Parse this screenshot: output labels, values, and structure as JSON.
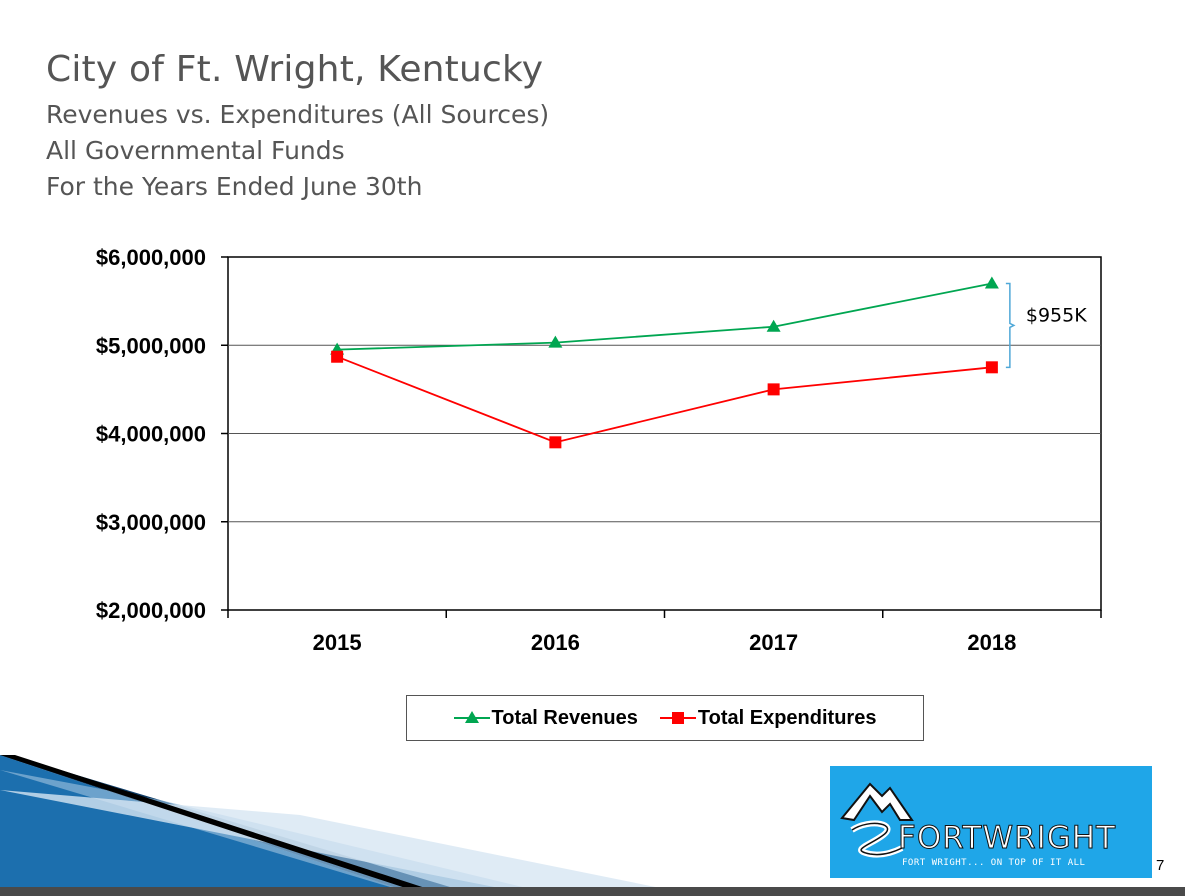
{
  "slide": {
    "title": "City of Ft. Wright, Kentucky",
    "subtitle_lines": [
      "Revenues  vs. Expenditures (All Sources)",
      "All Governmental Funds",
      "For the Years Ended June 30th"
    ],
    "page_number": "7"
  },
  "logo": {
    "name": "FORTWRIGHT",
    "tagline": "FORT WRIGHT... ON TOP OF IT ALL",
    "background": "#1fa6e8"
  },
  "chart_data": {
    "type": "line",
    "title": "",
    "xlabel": "",
    "ylabel": "",
    "categories": [
      "2015",
      "2016",
      "2017",
      "2018"
    ],
    "ylim": [
      2000000,
      6000000
    ],
    "yticks": [
      2000000,
      3000000,
      4000000,
      5000000,
      6000000
    ],
    "ytick_labels": [
      "$2,000,000",
      "$3,000,000",
      "$4,000,000",
      "$5,000,000",
      "$6,000,000"
    ],
    "grid": true,
    "legend_position": "bottom",
    "series": [
      {
        "name": "Total Revenues",
        "values": [
          4950000,
          5030000,
          5210000,
          5700000
        ],
        "color": "#00a651",
        "marker": "triangle"
      },
      {
        "name": "Total Expenditures",
        "values": [
          4870000,
          3900000,
          4500000,
          4750000
        ],
        "color": "#ff0000",
        "marker": "square"
      }
    ],
    "annotations": [
      {
        "text": "$955K",
        "category": "2018",
        "from_value": 4750000,
        "to_value": 5700000,
        "style": "bracket",
        "color": "#4fa8d8"
      }
    ]
  }
}
